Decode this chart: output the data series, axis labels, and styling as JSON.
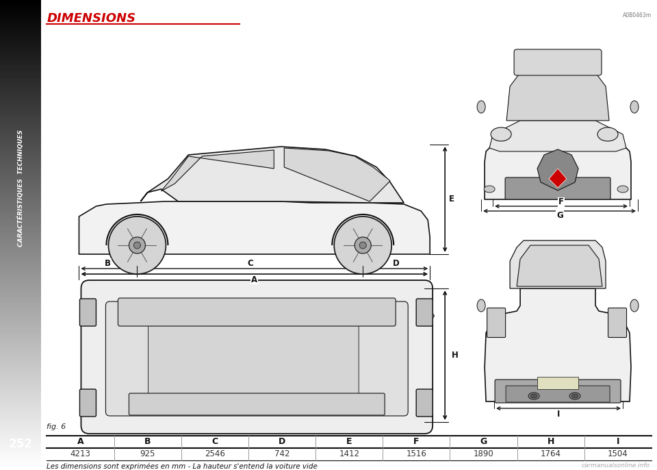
{
  "title": "DIMENSIONS",
  "fig_label": "fig. 6",
  "code": "A0B0463m",
  "columns": [
    "A",
    "B",
    "C",
    "D",
    "E",
    "F",
    "G",
    "H",
    "I"
  ],
  "values": [
    "4213",
    "925",
    "2546",
    "742",
    "1412",
    "1516",
    "1890",
    "1764",
    "1504"
  ],
  "footnote": "Les dimensions sont exprimées en mm - La hauteur s'entend la voiture vide",
  "page_number": "252",
  "sidebar_text": "CARACTÉRISTIQUES  TECHNIQUES",
  "watermark": "carmanualsonline.info",
  "title_color": "#cc0000",
  "line_color": "#111111",
  "bg_color": "#ffffff",
  "sidebar_grad_top": "#444444",
  "sidebar_grad_bottom": "#a8a8a8"
}
